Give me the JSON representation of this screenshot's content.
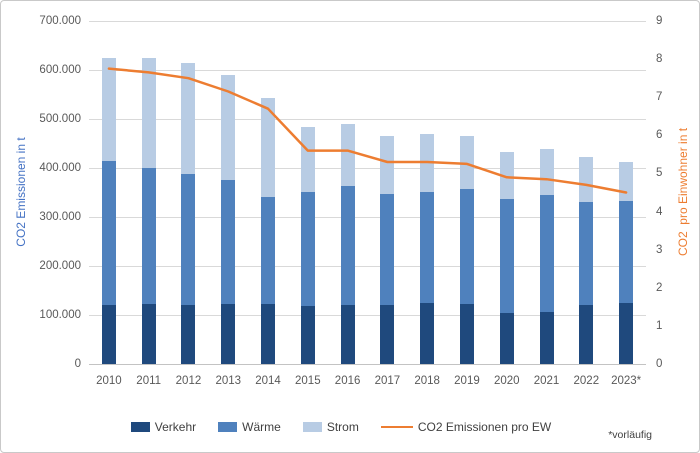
{
  "window": {
    "background": "#ffffff",
    "border_color": "#c9c9c9"
  },
  "footnote": "*vorläufig",
  "chart_data": {
    "type": "bar",
    "subtype": "stacked-bar-with-line",
    "categories": [
      "2010",
      "2011",
      "2012",
      "2013",
      "2014",
      "2015",
      "2016",
      "2017",
      "2018",
      "2019",
      "2020",
      "2021",
      "2022",
      "2023*"
    ],
    "series": [
      {
        "name": "Verkehr",
        "type": "bar",
        "color": "#1F497D",
        "values": [
          120000,
          122000,
          121000,
          122000,
          122000,
          118000,
          120000,
          120000,
          124000,
          123000,
          105000,
          107000,
          121000,
          125000
        ]
      },
      {
        "name": "Wärme",
        "type": "bar",
        "color": "#4F81BD",
        "values": [
          294000,
          278000,
          266000,
          253000,
          219000,
          233000,
          244000,
          227000,
          227000,
          234000,
          231000,
          237000,
          209000,
          207000
        ]
      },
      {
        "name": "Strom",
        "type": "bar",
        "color": "#B8CCE4",
        "values": [
          210000,
          224000,
          227000,
          214000,
          202000,
          132000,
          125000,
          119000,
          119000,
          108000,
          97000,
          95000,
          93000,
          81000
        ]
      },
      {
        "name": "CO2 Emissionen pro EW",
        "type": "line",
        "axis": "right",
        "color": "#ED7D31",
        "values": [
          7.75,
          7.65,
          7.5,
          7.15,
          6.7,
          5.6,
          5.6,
          5.3,
          5.3,
          5.25,
          4.9,
          4.85,
          4.7,
          4.5
        ]
      }
    ],
    "totals": [
      624000,
      624000,
      614000,
      589000,
      543000,
      483000,
      489000,
      466000,
      470000,
      465000,
      433000,
      439000,
      423000,
      413000
    ],
    "left_axis": {
      "title": "CO2 Emissionen in t",
      "title_color": "#4472C4",
      "min": 0,
      "max": 700000,
      "step": 100000,
      "tick_labels": [
        "0",
        "100.000",
        "200.000",
        "300.000",
        "400.000",
        "500.000",
        "600.000",
        "700.000"
      ]
    },
    "right_axis": {
      "title": "CO2  pro Einwohner in t",
      "title_color": "#ED7D31",
      "min": 0,
      "max": 9,
      "step": 1,
      "tick_labels": [
        "0",
        "1",
        "2",
        "3",
        "4",
        "5",
        "6",
        "7",
        "8",
        "9"
      ]
    },
    "grid": "horizontal",
    "legend_position": "bottom",
    "tick_color": "#595959",
    "gridline_color": "#d9d9d9"
  }
}
